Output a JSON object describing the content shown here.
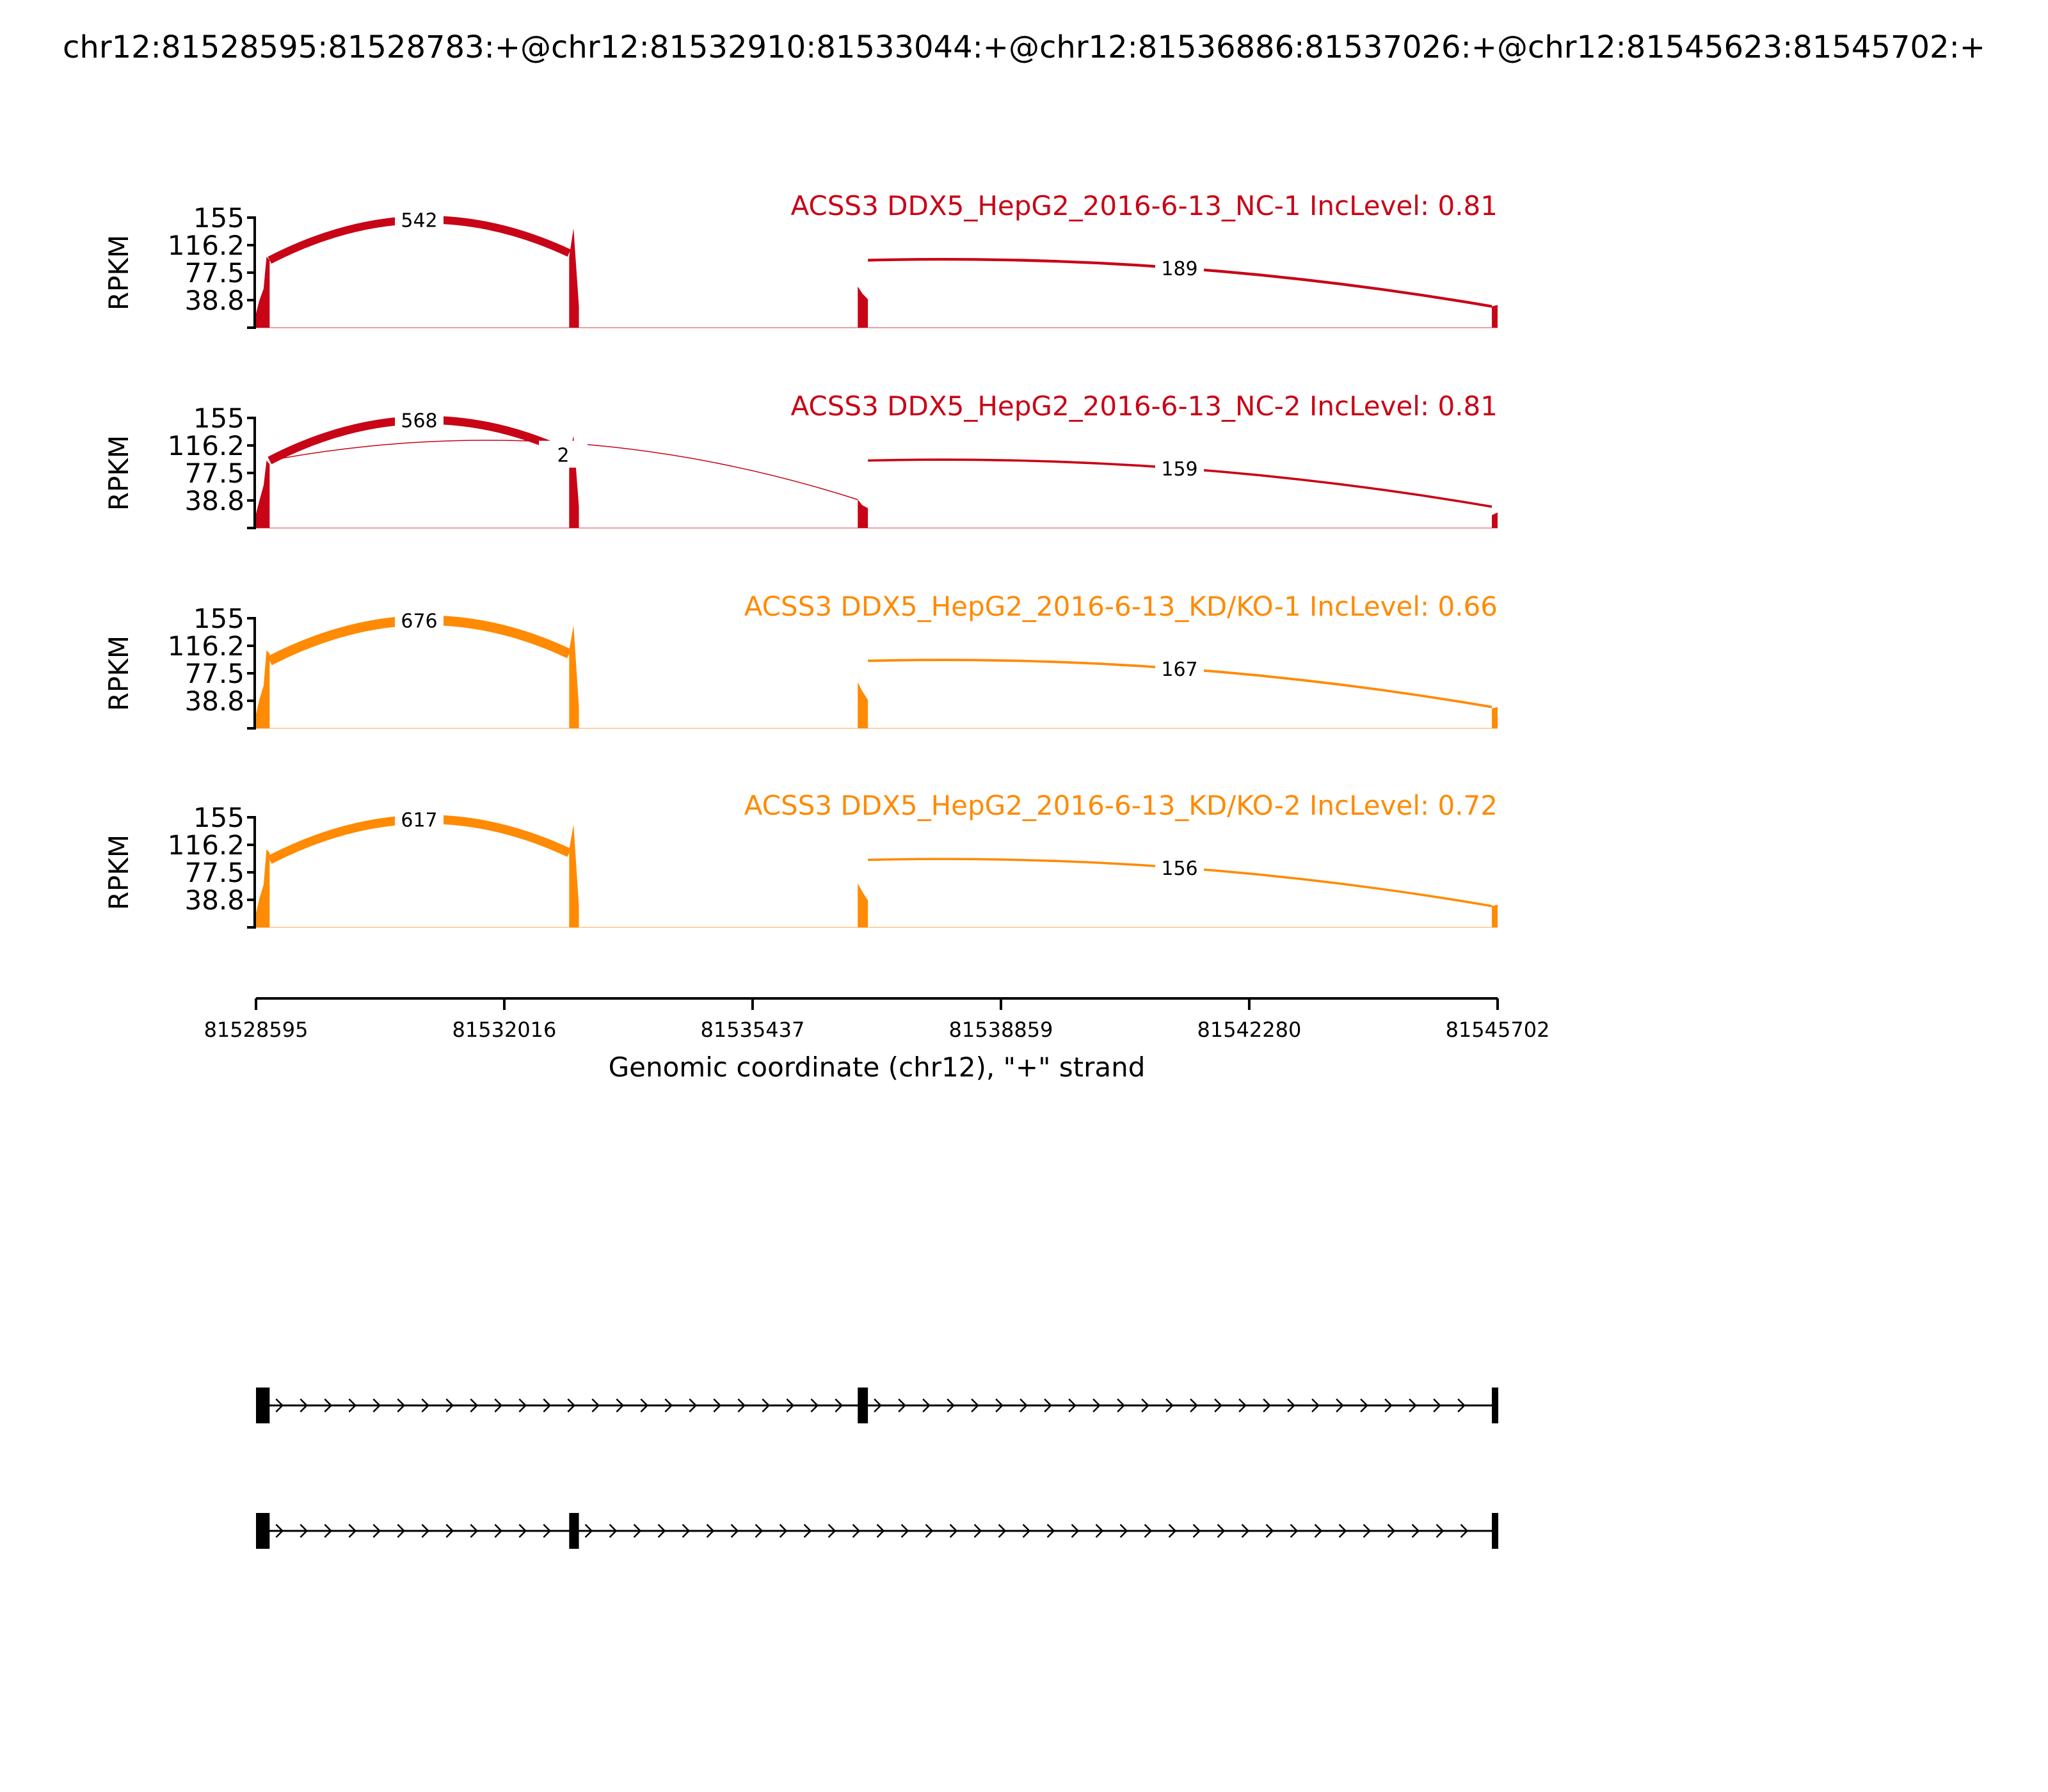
{
  "title": "chr12:81528595:81528783:+@chr12:81532910:81533044:+@chr12:81536886:81537026:+@chr12:81545623:81545702:+",
  "colors": {
    "nc": "#c80417",
    "kd": "#ff8a03",
    "axis": "#000000",
    "gene": "#000000"
  },
  "chart_data": {
    "type": "sashimi",
    "xlabel": "Genomic coordinate (chr12), \"+\" strand",
    "ylabel": "RPKM",
    "xlim": [
      81528595,
      81545702
    ],
    "ylim": [
      0,
      155
    ],
    "xticks": [
      81528595,
      81532016,
      81535437,
      81538859,
      81542280,
      81545702
    ],
    "xtick_labels": [
      "81528595",
      "81532016",
      "81535437",
      "81538859",
      "81542280",
      "81545702"
    ],
    "yticks": [
      38.8,
      77.5,
      116.2,
      155
    ],
    "ytick_labels": [
      "38.8",
      "77.5",
      "116.2",
      "155"
    ],
    "exons": [
      [
        81528595,
        81528783
      ],
      [
        81532910,
        81533044
      ],
      [
        81536886,
        81537026
      ],
      [
        81545623,
        81545702
      ]
    ],
    "tracks": [
      {
        "name": "ACSS3 DDX5_HepG2_2016-6-13_NC-1 IncLevel: 0.81",
        "color": "nc",
        "coverage": [
          {
            "exon": 0,
            "profile": [
              [
                81528595,
                20
              ],
              [
                81528640,
                38
              ],
              [
                81528700,
                55
              ],
              [
                81528740,
                100
              ],
              [
                81528783,
                95
              ]
            ]
          },
          {
            "exon": 1,
            "profile": [
              [
                81532910,
                100
              ],
              [
                81532970,
                140
              ],
              [
                81533044,
                30
              ]
            ]
          },
          {
            "exon": 2,
            "profile": [
              [
                81536886,
                58
              ],
              [
                81536950,
                48
              ],
              [
                81537026,
                40
              ]
            ]
          },
          {
            "exon": 3,
            "profile": [
              [
                81545623,
                30
              ],
              [
                81545702,
                32
              ]
            ]
          }
        ],
        "junctions": [
          {
            "from": 81528783,
            "to": 81532910,
            "count": "542"
          },
          {
            "from": 81537026,
            "to": 81545623,
            "count": "189"
          }
        ]
      },
      {
        "name": "ACSS3 DDX5_HepG2_2016-6-13_NC-2 IncLevel: 0.81",
        "color": "nc",
        "coverage": [
          {
            "exon": 0,
            "profile": [
              [
                81528595,
                20
              ],
              [
                81528640,
                38
              ],
              [
                81528700,
                60
              ],
              [
                81528740,
                95
              ],
              [
                81528783,
                90
              ]
            ]
          },
          {
            "exon": 1,
            "profile": [
              [
                81532910,
                100
              ],
              [
                81532970,
                130
              ],
              [
                81533044,
                30
              ]
            ]
          },
          {
            "exon": 2,
            "profile": [
              [
                81536886,
                40
              ],
              [
                81536950,
                32
              ],
              [
                81537026,
                28
              ]
            ]
          },
          {
            "exon": 3,
            "profile": [
              [
                81545623,
                18
              ],
              [
                81545702,
                22
              ]
            ]
          }
        ],
        "junctions": [
          {
            "from": 81528783,
            "to": 81532910,
            "count": "568"
          },
          {
            "from": 81528783,
            "to": 81536886,
            "count": "2"
          },
          {
            "from": 81537026,
            "to": 81545623,
            "count": "159"
          }
        ]
      },
      {
        "name": "ACSS3 DDX5_HepG2_2016-6-13_KD/KO-1 IncLevel: 0.66",
        "color": "kd",
        "coverage": [
          {
            "exon": 0,
            "profile": [
              [
                81528595,
                20
              ],
              [
                81528640,
                40
              ],
              [
                81528700,
                60
              ],
              [
                81528740,
                110
              ],
              [
                81528783,
                105
              ]
            ]
          },
          {
            "exon": 1,
            "profile": [
              [
                81532910,
                110
              ],
              [
                81532970,
                145
              ],
              [
                81533044,
                30
              ]
            ]
          },
          {
            "exon": 2,
            "profile": [
              [
                81536886,
                65
              ],
              [
                81536950,
                52
              ],
              [
                81537026,
                40
              ]
            ]
          },
          {
            "exon": 3,
            "profile": [
              [
                81545623,
                28
              ],
              [
                81545702,
                30
              ]
            ]
          }
        ],
        "junctions": [
          {
            "from": 81528783,
            "to": 81532910,
            "count": "676"
          },
          {
            "from": 81537026,
            "to": 81545623,
            "count": "167"
          }
        ]
      },
      {
        "name": "ACSS3 DDX5_HepG2_2016-6-13_KD/KO-2 IncLevel: 0.72",
        "color": "kd",
        "coverage": [
          {
            "exon": 0,
            "profile": [
              [
                81528595,
                20
              ],
              [
                81528640,
                40
              ],
              [
                81528700,
                60
              ],
              [
                81528740,
                110
              ],
              [
                81528783,
                105
              ]
            ]
          },
          {
            "exon": 1,
            "profile": [
              [
                81532910,
                110
              ],
              [
                81532970,
                145
              ],
              [
                81533044,
                30
              ]
            ]
          },
          {
            "exon": 2,
            "profile": [
              [
                81536886,
                62
              ],
              [
                81536950,
                50
              ],
              [
                81537026,
                38
              ]
            ]
          },
          {
            "exon": 3,
            "profile": [
              [
                81545623,
                30
              ],
              [
                81545702,
                32
              ]
            ]
          }
        ],
        "junctions": [
          {
            "from": 81528783,
            "to": 81532910,
            "count": "617"
          },
          {
            "from": 81537026,
            "to": 81545623,
            "count": "156"
          }
        ]
      }
    ],
    "isoforms": [
      {
        "exons": [
          [
            81528595,
            81528783
          ],
          [
            81536886,
            81537026
          ],
          [
            81545623,
            81545702
          ]
        ]
      },
      {
        "exons": [
          [
            81528595,
            81528783
          ],
          [
            81532910,
            81533044
          ],
          [
            81545623,
            81545702
          ]
        ]
      }
    ]
  }
}
